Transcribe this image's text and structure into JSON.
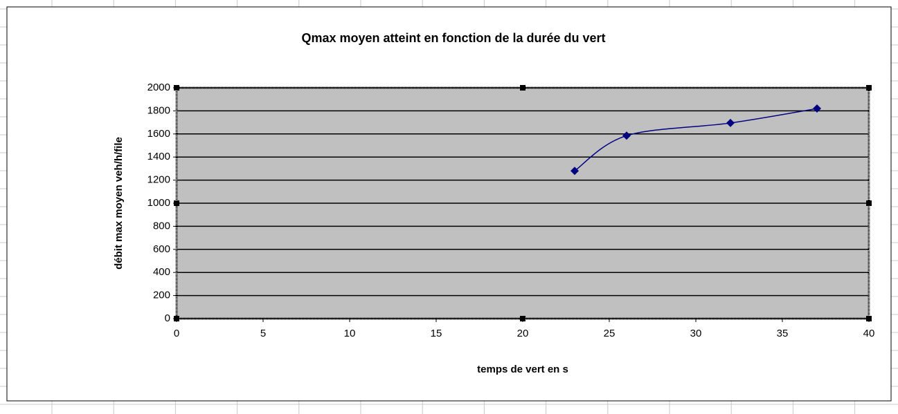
{
  "chart_data": {
    "type": "line",
    "title": "Qmax moyen atteint en fonction de la durée du vert",
    "x_label": "temps de vert en s",
    "y_label": "débit max moyen veh/h/file",
    "x": [
      23,
      26,
      32,
      37
    ],
    "series": [
      {
        "name": "Qmax",
        "color": "#000080",
        "values": [
          1280,
          1585,
          1695,
          1820
        ]
      }
    ],
    "xlim": [
      0,
      40
    ],
    "xticks": [
      0,
      5,
      10,
      15,
      20,
      25,
      30,
      35,
      40
    ],
    "ylim": [
      0,
      2000
    ],
    "yticks": [
      0,
      200,
      400,
      600,
      800,
      1000,
      1200,
      1400,
      1600,
      1800,
      2000
    ],
    "grid": true,
    "smooth": true
  }
}
